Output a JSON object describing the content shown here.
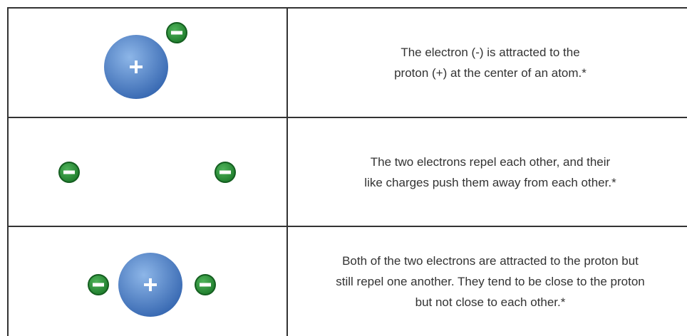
{
  "table": {
    "rows": [
      {
        "lines": [
          "The electron (-) is attracted to the",
          "proton (+) at the center of an atom.*"
        ]
      },
      {
        "lines": [
          "The two electrons repel each other, and their",
          "like charges push them away from each other.*"
        ]
      },
      {
        "lines": [
          "Both of the two electrons are attracted to the proton but",
          "still repel one another. They tend to be close to the proton",
          "but not close to each other.*"
        ]
      }
    ]
  }
}
